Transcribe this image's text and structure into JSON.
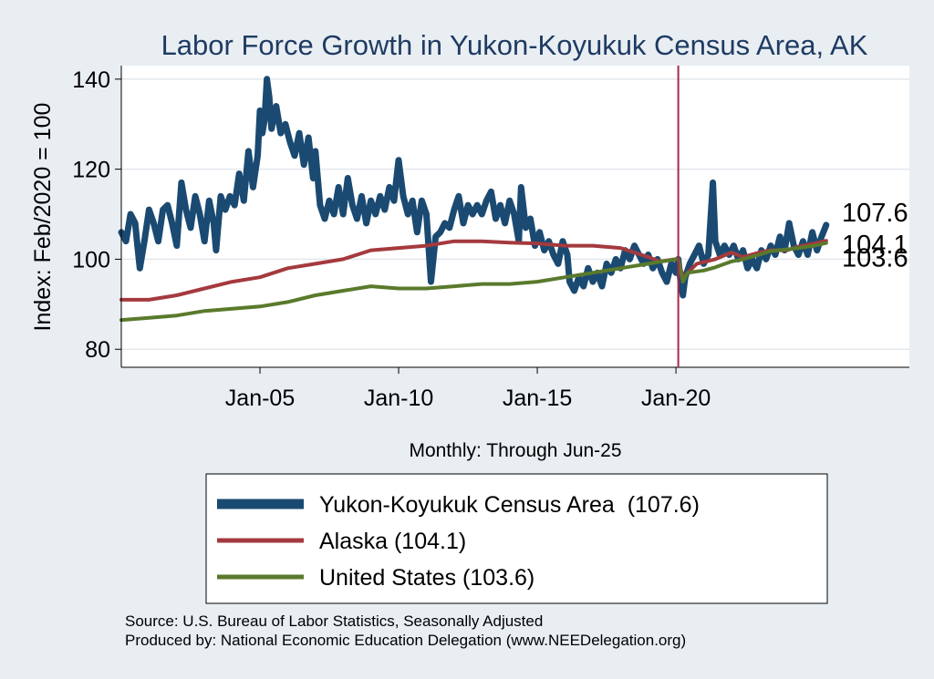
{
  "chart_data": {
    "type": "line",
    "title": "Labor Force Growth in Yukon-Koyukuk Census Area, AK",
    "ylabel": "Index: Feb/2020 = 100",
    "xlabel": "Monthly: Through Jun-25",
    "ylim": [
      76,
      143
    ],
    "yticks": [
      80,
      100,
      120,
      140
    ],
    "xlim": [
      "2000-01",
      "2028-06"
    ],
    "xticks": [
      {
        "date": "2005-01",
        "label": "Jan-05"
      },
      {
        "date": "2010-01",
        "label": "Jan-10"
      },
      {
        "date": "2015-01",
        "label": "Jan-15"
      },
      {
        "date": "2020-01",
        "label": "Jan-20"
      }
    ],
    "reference_line": {
      "date": "2020-02",
      "color": "#a8284a"
    },
    "grid": true,
    "legend_position": "bottom",
    "series": [
      {
        "name": "Yukon-Koyukuk Census Area  (107.6)",
        "end_label": "107.6",
        "color": "#1a4a72",
        "points": [
          [
            "2000-01",
            106
          ],
          [
            "2000-03",
            104
          ],
          [
            "2000-05",
            110
          ],
          [
            "2000-07",
            108
          ],
          [
            "2000-08",
            103
          ],
          [
            "2000-09",
            98
          ],
          [
            "2000-11",
            104
          ],
          [
            "2001-01",
            111
          ],
          [
            "2001-03",
            108
          ],
          [
            "2001-05",
            104
          ],
          [
            "2001-07",
            111
          ],
          [
            "2001-09",
            112
          ],
          [
            "2001-11",
            108
          ],
          [
            "2002-01",
            103
          ],
          [
            "2002-03",
            117
          ],
          [
            "2002-05",
            111
          ],
          [
            "2002-07",
            107
          ],
          [
            "2002-09",
            114
          ],
          [
            "2002-11",
            110
          ],
          [
            "2003-01",
            104
          ],
          [
            "2003-03",
            113
          ],
          [
            "2003-05",
            108
          ],
          [
            "2003-06",
            102
          ],
          [
            "2003-08",
            114
          ],
          [
            "2003-10",
            111
          ],
          [
            "2003-12",
            114
          ],
          [
            "2004-02",
            112
          ],
          [
            "2004-04",
            119
          ],
          [
            "2004-06",
            113
          ],
          [
            "2004-08",
            124
          ],
          [
            "2004-10",
            116
          ],
          [
            "2004-12",
            123
          ],
          [
            "2005-01",
            133
          ],
          [
            "2005-02",
            128
          ],
          [
            "2005-03",
            131
          ],
          [
            "2005-04",
            140
          ],
          [
            "2005-05",
            136
          ],
          [
            "2005-06",
            129
          ],
          [
            "2005-08",
            134
          ],
          [
            "2005-10",
            128
          ],
          [
            "2005-12",
            130
          ],
          [
            "2006-02",
            126
          ],
          [
            "2006-04",
            123
          ],
          [
            "2006-06",
            128
          ],
          [
            "2006-08",
            121
          ],
          [
            "2006-10",
            127
          ],
          [
            "2006-12",
            118
          ],
          [
            "2007-01",
            124
          ],
          [
            "2007-03",
            112
          ],
          [
            "2007-05",
            109
          ],
          [
            "2007-07",
            113
          ],
          [
            "2007-09",
            110
          ],
          [
            "2007-11",
            116
          ],
          [
            "2008-01",
            110
          ],
          [
            "2008-03",
            118
          ],
          [
            "2008-05",
            112
          ],
          [
            "2008-07",
            109
          ],
          [
            "2008-09",
            114
          ],
          [
            "2008-11",
            108
          ],
          [
            "2009-01",
            113
          ],
          [
            "2009-03",
            110
          ],
          [
            "2009-05",
            114
          ],
          [
            "2009-07",
            111
          ],
          [
            "2009-09",
            116
          ],
          [
            "2009-11",
            113
          ],
          [
            "2010-01",
            122
          ],
          [
            "2010-03",
            114
          ],
          [
            "2010-05",
            110
          ],
          [
            "2010-07",
            113
          ],
          [
            "2010-09",
            106
          ],
          [
            "2010-11",
            113
          ],
          [
            "2011-01",
            110
          ],
          [
            "2011-03",
            95
          ],
          [
            "2011-05",
            105
          ],
          [
            "2011-07",
            106
          ],
          [
            "2011-09",
            108
          ],
          [
            "2011-11",
            107
          ],
          [
            "2012-01",
            111
          ],
          [
            "2012-03",
            114
          ],
          [
            "2012-05",
            108
          ],
          [
            "2012-07",
            112
          ],
          [
            "2012-09",
            110
          ],
          [
            "2012-11",
            112
          ],
          [
            "2013-01",
            110
          ],
          [
            "2013-03",
            113
          ],
          [
            "2013-05",
            115
          ],
          [
            "2013-07",
            109
          ],
          [
            "2013-09",
            112
          ],
          [
            "2013-11",
            108
          ],
          [
            "2014-01",
            113
          ],
          [
            "2014-03",
            110
          ],
          [
            "2014-05",
            104
          ],
          [
            "2014-06",
            116
          ],
          [
            "2014-08",
            107
          ],
          [
            "2014-10",
            109
          ],
          [
            "2014-12",
            103
          ],
          [
            "2015-02",
            106
          ],
          [
            "2015-04",
            102
          ],
          [
            "2015-06",
            104
          ],
          [
            "2015-08",
            101
          ],
          [
            "2015-10",
            99
          ],
          [
            "2015-12",
            104
          ],
          [
            "2016-02",
            101
          ],
          [
            "2016-03",
            95
          ],
          [
            "2016-05",
            93
          ],
          [
            "2016-07",
            96
          ],
          [
            "2016-09",
            94
          ],
          [
            "2016-11",
            98
          ],
          [
            "2017-01",
            95
          ],
          [
            "2017-03",
            97
          ],
          [
            "2017-05",
            94
          ],
          [
            "2017-07",
            99
          ],
          [
            "2017-09",
            97
          ],
          [
            "2017-11",
            100
          ],
          [
            "2018-01",
            98
          ],
          [
            "2018-03",
            102
          ],
          [
            "2018-05",
            100
          ],
          [
            "2018-07",
            103
          ],
          [
            "2018-09",
            101
          ],
          [
            "2018-11",
            99
          ],
          [
            "2019-01",
            101
          ],
          [
            "2019-03",
            98
          ],
          [
            "2019-05",
            100
          ],
          [
            "2019-07",
            97
          ],
          [
            "2019-09",
            95
          ],
          [
            "2019-11",
            99
          ],
          [
            "2020-01",
            97
          ],
          [
            "2020-02",
            100
          ],
          [
            "2020-03",
            95
          ],
          [
            "2020-04",
            92
          ],
          [
            "2020-05",
            96
          ],
          [
            "2020-07",
            99
          ],
          [
            "2020-09",
            101
          ],
          [
            "2020-11",
            103
          ],
          [
            "2021-01",
            99
          ],
          [
            "2021-03",
            101
          ],
          [
            "2021-05",
            117
          ],
          [
            "2021-06",
            104
          ],
          [
            "2021-08",
            101
          ],
          [
            "2021-10",
            103
          ],
          [
            "2021-12",
            101
          ],
          [
            "2022-02",
            103
          ],
          [
            "2022-04",
            100
          ],
          [
            "2022-06",
            102
          ],
          [
            "2022-08",
            98
          ],
          [
            "2022-10",
            100
          ],
          [
            "2022-12",
            98
          ],
          [
            "2023-02",
            102
          ],
          [
            "2023-04",
            100
          ],
          [
            "2023-06",
            103
          ],
          [
            "2023-08",
            101
          ],
          [
            "2023-10",
            105
          ],
          [
            "2023-12",
            102
          ],
          [
            "2024-02",
            108
          ],
          [
            "2024-04",
            103
          ],
          [
            "2024-06",
            101
          ],
          [
            "2024-08",
            104
          ],
          [
            "2024-10",
            101
          ],
          [
            "2024-12",
            106
          ],
          [
            "2025-02",
            102
          ],
          [
            "2025-04",
            105
          ],
          [
            "2025-06",
            107.6
          ]
        ]
      },
      {
        "name": "Alaska (104.1)",
        "end_label": "104.1",
        "color": "#a43a3e",
        "points": [
          [
            "2000-01",
            91
          ],
          [
            "2001-01",
            91
          ],
          [
            "2002-01",
            92
          ],
          [
            "2003-01",
            93.5
          ],
          [
            "2004-01",
            95
          ],
          [
            "2005-01",
            96
          ],
          [
            "2006-01",
            98
          ],
          [
            "2007-01",
            99
          ],
          [
            "2008-01",
            100
          ],
          [
            "2009-01",
            102
          ],
          [
            "2010-01",
            102.5
          ],
          [
            "2011-01",
            103
          ],
          [
            "2012-01",
            104
          ],
          [
            "2013-01",
            104
          ],
          [
            "2014-01",
            103.7
          ],
          [
            "2015-01",
            103.5
          ],
          [
            "2016-01",
            103
          ],
          [
            "2017-01",
            103
          ],
          [
            "2018-01",
            102.5
          ],
          [
            "2019-01",
            100.5
          ],
          [
            "2019-06",
            99.5
          ],
          [
            "2020-01",
            100
          ],
          [
            "2020-02",
            100
          ],
          [
            "2020-04",
            96
          ],
          [
            "2020-06",
            97
          ],
          [
            "2020-10",
            99
          ],
          [
            "2021-06",
            100
          ],
          [
            "2022-01",
            101.5
          ],
          [
            "2022-06",
            100.5
          ],
          [
            "2023-01",
            101.5
          ],
          [
            "2023-06",
            102
          ],
          [
            "2024-01",
            102
          ],
          [
            "2024-06",
            102.8
          ],
          [
            "2025-01",
            103.5
          ],
          [
            "2025-06",
            104.1
          ]
        ]
      },
      {
        "name": "United States (103.6)",
        "end_label": "103.6",
        "color": "#5a7a2c",
        "points": [
          [
            "2000-01",
            86.5
          ],
          [
            "2001-01",
            87
          ],
          [
            "2002-01",
            87.5
          ],
          [
            "2003-01",
            88.5
          ],
          [
            "2004-01",
            89
          ],
          [
            "2005-01",
            89.5
          ],
          [
            "2006-01",
            90.5
          ],
          [
            "2007-01",
            92
          ],
          [
            "2008-01",
            93
          ],
          [
            "2009-01",
            94
          ],
          [
            "2010-01",
            93.5
          ],
          [
            "2011-01",
            93.5
          ],
          [
            "2012-01",
            94
          ],
          [
            "2013-01",
            94.5
          ],
          [
            "2014-01",
            94.5
          ],
          [
            "2015-01",
            95
          ],
          [
            "2016-01",
            96
          ],
          [
            "2017-01",
            97
          ],
          [
            "2018-01",
            98
          ],
          [
            "2019-01",
            99
          ],
          [
            "2020-01",
            100
          ],
          [
            "2020-02",
            100
          ],
          [
            "2020-04",
            95
          ],
          [
            "2020-06",
            97
          ],
          [
            "2021-01",
            97.5
          ],
          [
            "2021-06",
            98.2
          ],
          [
            "2022-01",
            99.5
          ],
          [
            "2022-06",
            100
          ],
          [
            "2023-01",
            101
          ],
          [
            "2023-06",
            101.8
          ],
          [
            "2024-01",
            102.2
          ],
          [
            "2024-06",
            102.5
          ],
          [
            "2025-01",
            103
          ],
          [
            "2025-06",
            103.6
          ]
        ]
      }
    ]
  },
  "footer": {
    "source": "Source: U.S. Bureau of Labor Statistics, Seasonally Adjusted",
    "produced_by": "Produced by: National Economic Education Delegation (www.NEEDelegation.org)"
  },
  "colors": {
    "page_background": "#e9eef3",
    "plot_background": "#ffffff",
    "title": "#1f3b63"
  }
}
